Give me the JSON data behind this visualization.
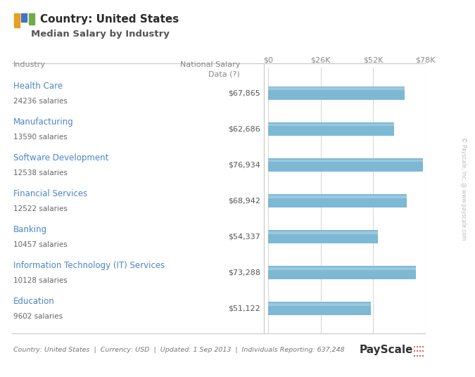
{
  "title_line1": "Country: United States",
  "title_line2": "Median Salary by Industry",
  "col_header_left": "Industry",
  "col_header_right": "National Salary\nData (?)",
  "industries": [
    "Health Care",
    "Manufacturing",
    "Software Development",
    "Financial Services",
    "Banking",
    "Information Technology (IT) Services",
    "Education"
  ],
  "salaries_count": [
    "24236 salaries",
    "13590 salaries",
    "12538 salaries",
    "12522 salaries",
    "10457 salaries",
    "10128 salaries",
    "9602 salaries"
  ],
  "values": [
    67865,
    62686,
    76934,
    68942,
    54337,
    73288,
    51122
  ],
  "value_labels": [
    "$67,865",
    "$62,686",
    "$76,934",
    "$68,942",
    "$54,337",
    "$73,288",
    "$51,122"
  ],
  "bar_color_light": "#a8cfe0",
  "bar_color_mid": "#7db8d4",
  "bar_color_dark": "#5a9ab8",
  "industry_color": "#4a86c8",
  "count_color": "#666666",
  "header_color": "#888888",
  "value_color": "#555555",
  "xlim_max": 78000,
  "xticks": [
    0,
    26000,
    52000,
    78000
  ],
  "xtick_labels": [
    "$0",
    "$26K",
    "$52K",
    "$78K"
  ],
  "footer": "Country: United States  |  Currency: USD  |  Updated: 1 Sep 2013  |  Individuals Reporting: 637,248",
  "bg_color": "#ffffff",
  "grid_color": "#d8d8d8",
  "separator_color": "#cccccc",
  "watermark": "© Payscale, Inc. @ www.payscale.com",
  "icon_colors": [
    "#e8a020",
    "#4472c4",
    "#70ad47"
  ],
  "payscale_color": "#333333"
}
